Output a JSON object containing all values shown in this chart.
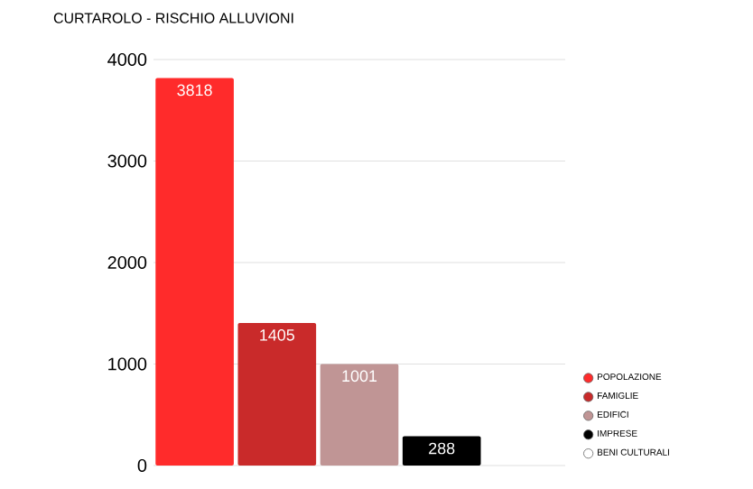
{
  "chart_data": {
    "type": "bar",
    "title": "CURTAROLO - RISCHIO ALLUVIONI",
    "categories": [
      null
    ],
    "series": [
      {
        "name": "POPOLAZIONE",
        "color": "#ff2b2b",
        "values": [
          3818
        ]
      },
      {
        "name": "FAMIGLIE",
        "color": "#c92a2a",
        "values": [
          1405
        ]
      },
      {
        "name": "EDIFICI",
        "color": "#c09595",
        "values": [
          1001
        ]
      },
      {
        "name": "IMPRESE",
        "color": "#000000",
        "values": [
          288
        ]
      },
      {
        "name": "BENI CULTURALI",
        "color": "#ffffff",
        "values": [
          null
        ]
      }
    ],
    "ylim": [
      0,
      4000
    ],
    "yticks": [
      0,
      1000,
      2000,
      3000,
      4000
    ],
    "grid": "y",
    "legend": "bottom right",
    "data_labels": true
  }
}
